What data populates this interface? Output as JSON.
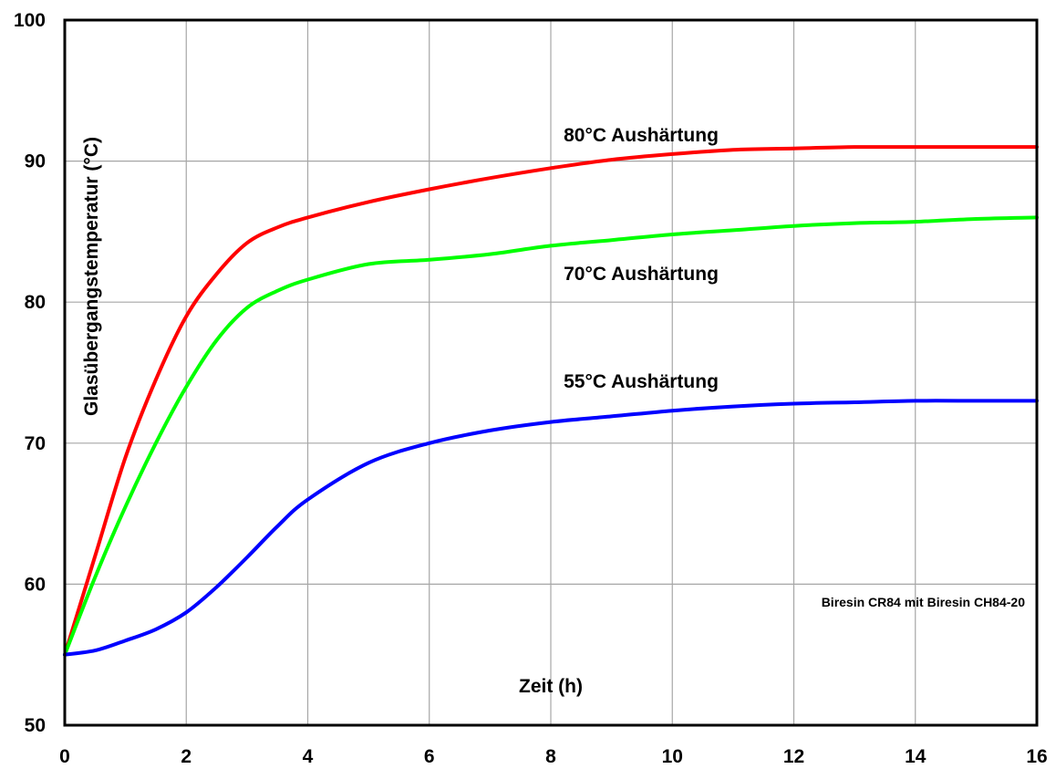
{
  "chart_data": {
    "type": "line",
    "xlabel": "Zeit (h)",
    "ylabel": "Glasübergangstemperatur (°C)",
    "note": "Biresin CR84 mit Biresin CH84-20",
    "xlim": [
      0,
      16
    ],
    "ylim": [
      50,
      100
    ],
    "xticks": [
      0,
      2,
      4,
      6,
      8,
      10,
      12,
      14,
      16
    ],
    "yticks": [
      50,
      60,
      70,
      80,
      90,
      100
    ],
    "grid": true,
    "series": [
      {
        "name": "80°C Aushärtung",
        "color": "#ff0000",
        "x": [
          0,
          0.5,
          1,
          1.5,
          2,
          2.5,
          3,
          3.5,
          4,
          5,
          6,
          7,
          8,
          9,
          10,
          11,
          12,
          13,
          14,
          15,
          16
        ],
        "y": [
          55,
          62,
          69,
          74.5,
          79,
          82,
          84.2,
          85.3,
          86,
          87.1,
          88,
          88.8,
          89.5,
          90.1,
          90.5,
          90.8,
          90.9,
          91,
          91,
          91,
          91
        ]
      },
      {
        "name": "70°C Aushärtung",
        "color": "#00ff00",
        "x": [
          0,
          0.5,
          1,
          1.5,
          2,
          2.5,
          3,
          3.5,
          4,
          5,
          6,
          7,
          8,
          9,
          10,
          11,
          12,
          13,
          14,
          15,
          16
        ],
        "y": [
          55,
          60.5,
          65.5,
          70,
          74,
          77.3,
          79.6,
          80.8,
          81.6,
          82.7,
          83,
          83.4,
          84,
          84.4,
          84.8,
          85.1,
          85.4,
          85.6,
          85.7,
          85.9,
          86
        ]
      },
      {
        "name": "55°C Aushärtung",
        "color": "#0000ff",
        "x": [
          0,
          0.5,
          1,
          1.5,
          2,
          2.5,
          3,
          3.5,
          4,
          5,
          6,
          7,
          8,
          9,
          10,
          11,
          12,
          13,
          14,
          15,
          16
        ],
        "y": [
          55,
          55.3,
          56,
          56.8,
          58,
          59.8,
          61.9,
          64.1,
          66,
          68.6,
          70,
          70.9,
          71.5,
          71.9,
          72.3,
          72.6,
          72.8,
          72.9,
          73,
          73,
          73
        ]
      }
    ]
  }
}
